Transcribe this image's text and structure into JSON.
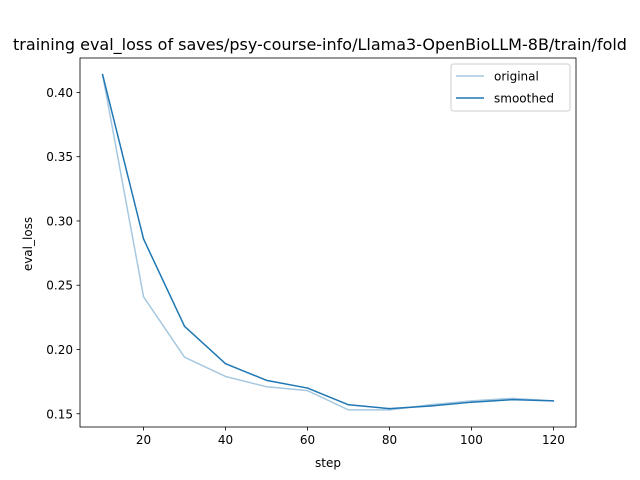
{
  "chart_data": {
    "type": "line",
    "title": "training eval_loss of saves/psy-course-info/Llama3-OpenBioLLM-8B/train/fold",
    "xlabel": "step",
    "ylabel": "eval_loss",
    "xlim": [
      4.5,
      125.5
    ],
    "ylim": [
      0.1397,
      0.4268
    ],
    "x_ticks": [
      20,
      40,
      60,
      80,
      100,
      120
    ],
    "y_ticks": [
      0.15,
      0.2,
      0.25,
      0.3,
      0.35,
      0.4
    ],
    "x_tick_labels": [
      "20",
      "40",
      "60",
      "80",
      "100",
      "120"
    ],
    "y_tick_labels": [
      "0.15",
      "0.20",
      "0.25",
      "0.30",
      "0.35",
      "0.40"
    ],
    "grid": false,
    "legend_position": "top-right",
    "x": [
      10,
      20,
      30,
      40,
      50,
      60,
      70,
      80,
      90,
      100,
      110,
      120
    ],
    "series": [
      {
        "name": "original",
        "color": "#a6c8e0",
        "values": [
          0.414,
          0.241,
          0.194,
          0.179,
          0.171,
          0.168,
          0.153,
          0.153,
          0.157,
          0.16,
          0.162,
          0.16
        ]
      },
      {
        "name": "smoothed",
        "color": "#1f77b4",
        "values": [
          0.414,
          0.286,
          0.218,
          0.189,
          0.176,
          0.17,
          0.157,
          0.154,
          0.156,
          0.159,
          0.161,
          0.16
        ]
      }
    ]
  }
}
